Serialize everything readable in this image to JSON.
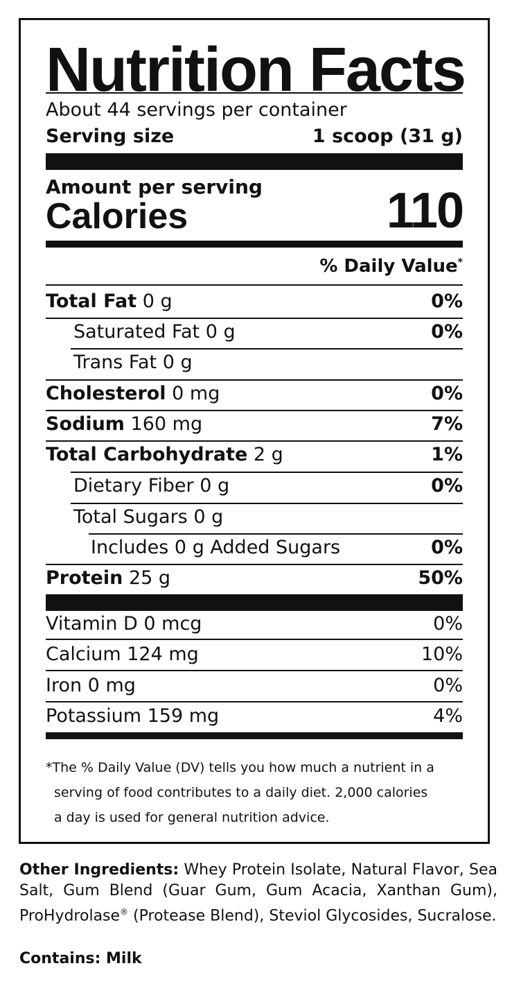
{
  "title": "Nutrition Facts",
  "servings_per_container": "About 44 servings per container",
  "serving_size_label": "Serving size",
  "serving_size_value": "1 scoop (31 g)",
  "amount_per_serving": "Amount per serving",
  "calories_label": "Calories",
  "calories_value": "110",
  "daily_value_header": "% Daily Value",
  "daily_value_asterisk": "*",
  "nutrients": [
    {
      "name": "Total Fat",
      "amount": "0 g",
      "dv": "0%"
    },
    {
      "name": "Saturated Fat",
      "amount": "0 g",
      "dv": "0%"
    },
    {
      "name": "Trans Fat",
      "amount": "0 g",
      "dv": ""
    },
    {
      "name": "Cholesterol",
      "amount": "0 mg",
      "dv": "0%"
    },
    {
      "name": "Sodium",
      "amount": "160 mg",
      "dv": "7%"
    },
    {
      "name": "Total Carbohydrate",
      "amount": "2 g",
      "dv": "1%"
    },
    {
      "name": "Dietary Fiber",
      "amount": "0 g",
      "dv": "0%"
    },
    {
      "name": "Total Sugars",
      "amount": "0 g",
      "dv": ""
    },
    {
      "name": "Includes 0 g Added Sugars",
      "amount": "",
      "dv": "0%"
    },
    {
      "name": "Protein",
      "amount": "25 g",
      "dv": "50%"
    }
  ],
  "vitamins": [
    {
      "name": "Vitamin D 0 mcg",
      "dv": "0%"
    },
    {
      "name": "Calcium 124 mg",
      "dv": "10%"
    },
    {
      "name": "Iron 0 mg",
      "dv": "0%"
    },
    {
      "name": "Potassium 159 mg",
      "dv": "4%"
    }
  ],
  "footnote": {
    "line1": "*The % Daily Value (DV) tells you how much a nutrient in a",
    "line2": "serving of food contributes to a daily diet. 2,000 calories",
    "line3": "a day is used for general nutrition advice."
  },
  "ingredients": {
    "label": "Other Ingredients:",
    "text_part1": " Whey Protein Isolate, Natural Flavor, Sea Salt, Gum Blend (Guar Gum, Gum Acacia, Xanthan Gum), ProHydrolase",
    "registered": "®",
    "text_part2": " (Protease Blend), Steviol Glycosides, Sucralose."
  },
  "contains": "Contains: Milk"
}
